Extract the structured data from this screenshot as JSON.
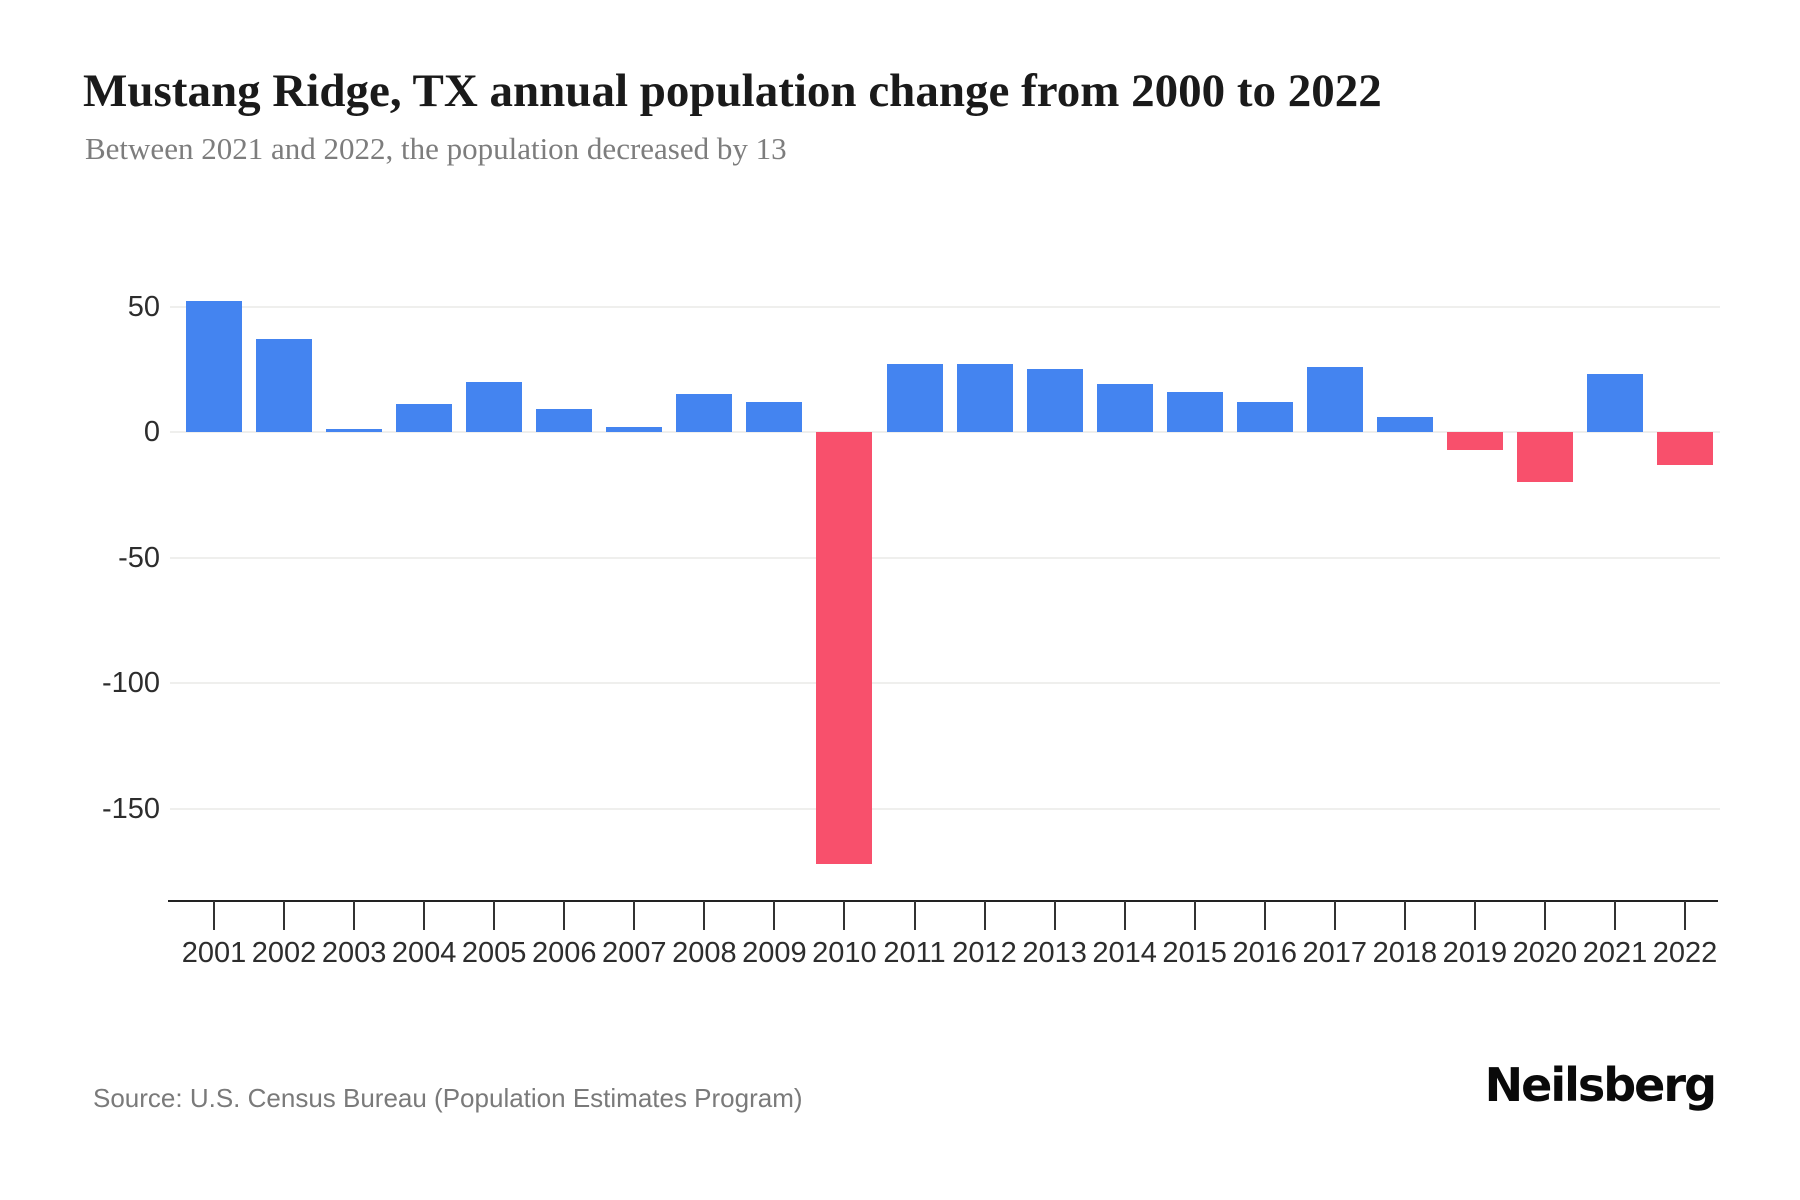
{
  "header": {
    "title": "Mustang Ridge, TX annual population change from 2000 to 2022",
    "subtitle": "Between 2021 and 2022, the population decreased by 13"
  },
  "footer": {
    "source": "Source: U.S. Census Bureau (Population Estimates Program)",
    "brand": "Neilsberg"
  },
  "colors": {
    "positive_bar": "#4484F0",
    "negative_bar": "#F8506C",
    "gridline": "#efefed",
    "axis": "#222222",
    "axis_tick": "#333333",
    "title_text": "#1a1a1a",
    "subtitle_text": "#7d7d7d",
    "tick_label_text": "#2d2d2d",
    "source_text": "#7a7a7a"
  },
  "chart_data": {
    "type": "bar",
    "title": "Mustang Ridge, TX annual population change from 2000 to 2022",
    "subtitle": "Between 2021 and 2022, the population decreased by 13",
    "xlabel": "",
    "ylabel": "",
    "categories": [
      "2001",
      "2002",
      "2003",
      "2004",
      "2005",
      "2006",
      "2007",
      "2008",
      "2009",
      "2010",
      "2011",
      "2012",
      "2013",
      "2014",
      "2015",
      "2016",
      "2017",
      "2018",
      "2019",
      "2020",
      "2021",
      "2022"
    ],
    "values": [
      52,
      37,
      1,
      11,
      20,
      9,
      2,
      15,
      12,
      -172,
      27,
      27,
      25,
      19,
      16,
      12,
      26,
      6,
      -7,
      -20,
      23,
      -13
    ],
    "yticks": [
      50,
      0,
      -50,
      -100,
      -150
    ],
    "ylim": [
      -186,
      60
    ],
    "grid": true,
    "legend": "none",
    "positive_color": "#4484F0",
    "negative_color": "#F8506C"
  }
}
